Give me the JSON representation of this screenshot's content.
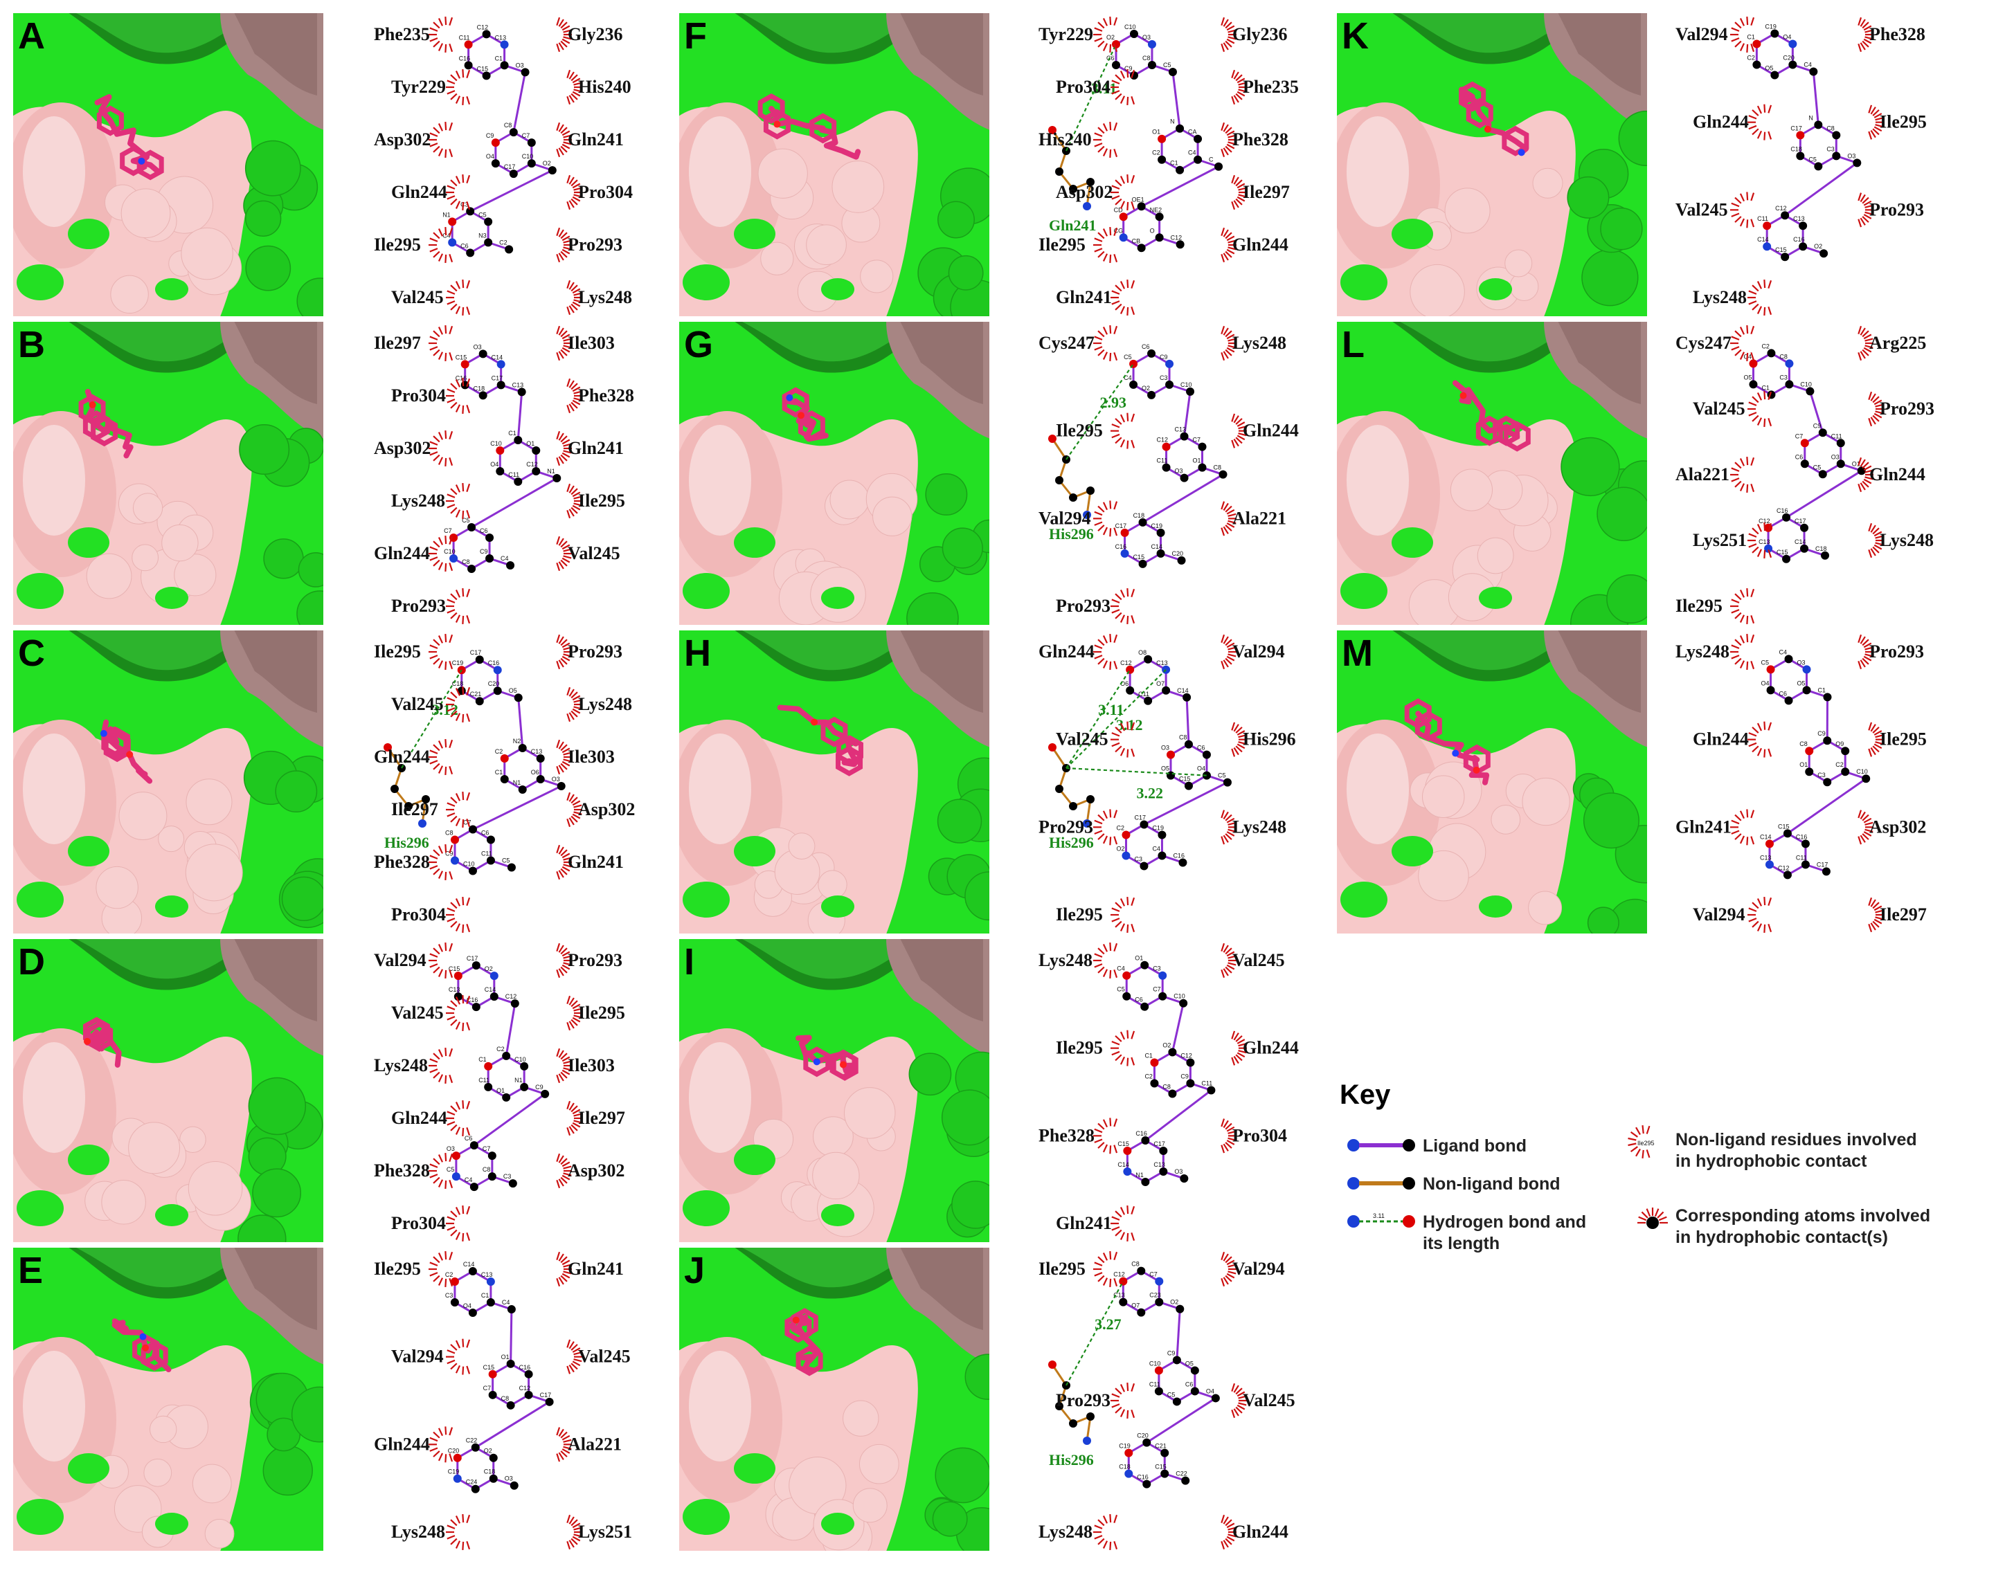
{
  "panels": [
    {
      "letter": "A",
      "residues": [
        "Phe235",
        "Gly236",
        "Tyr229",
        "His240",
        "Asp302",
        "Gln241",
        "Gln244",
        "Pro304",
        "Ile295",
        "Pro293",
        "Val245",
        "Lys248"
      ],
      "hbonds": [],
      "hres": [],
      "atoms": [
        "C1",
        "C15",
        "C16",
        "C11",
        "C12",
        "C13",
        "O3",
        "C10",
        "C17",
        "O4",
        "C9",
        "C8",
        "C7",
        "O2",
        "N3",
        "C6",
        "C4",
        "N1",
        "C3",
        "C5",
        "C2",
        "N2",
        "C1",
        "C19",
        "C21",
        "C23",
        "C18",
        "C20",
        "C22",
        "C24",
        "O1",
        "O5",
        "C25"
      ]
    },
    {
      "letter": "B",
      "residues": [
        "Ile297",
        "Ile303",
        "Pro304",
        "Phe328",
        "Asp302",
        "Gln241",
        "Lys248",
        "Ile295",
        "Gln244",
        "Val245",
        "Pro293"
      ],
      "hbonds": [],
      "hres": [],
      "atoms": [
        "C17",
        "C18",
        "C16",
        "C15",
        "O3",
        "C14",
        "C13",
        "C12",
        "C11",
        "O4",
        "C10",
        "C1",
        "O1",
        "N1",
        "C9",
        "C8",
        "C10",
        "C7",
        "C5",
        "C6",
        "C4",
        "C2",
        "C3",
        "N2",
        "N3",
        "O2"
      ]
    },
    {
      "letter": "C",
      "residues": [
        "Ile295",
        "Pro293",
        "Val245",
        "Lys248",
        "Gln244",
        "Ile303",
        "Ile297",
        "Asp302",
        "Phe328",
        "Gln241",
        "Pro304"
      ],
      "hbonds": [
        "3.12"
      ],
      "hres": [
        "His296"
      ],
      "atoms": [
        "C20",
        "C21",
        "C18",
        "C19",
        "C17",
        "C16",
        "O5",
        "O6",
        "N1",
        "C1",
        "C2",
        "N2",
        "C13",
        "O3",
        "C11",
        "C10",
        "C9",
        "C8",
        "C7",
        "C6",
        "C5",
        "O1",
        "O",
        "CD",
        "NE2",
        "CE1",
        "ND1",
        "CG",
        "CB",
        "CA",
        "N"
      ]
    },
    {
      "letter": "D",
      "residues": [
        "Val294",
        "Pro293",
        "Val245",
        "Ile295",
        "Lys248",
        "Ile303",
        "Gln244",
        "Ile297",
        "Phe328",
        "Asp302",
        "Pro304"
      ],
      "hbonds": [],
      "hres": [],
      "atoms": [
        "C14",
        "C16",
        "C13",
        "C15",
        "C17",
        "O2",
        "C12",
        "N1",
        "O1",
        "C11",
        "C1",
        "C2",
        "C10",
        "C9",
        "C8",
        "C4",
        "C5",
        "O3",
        "C6",
        "C7",
        "C3"
      ]
    },
    {
      "letter": "E",
      "residues": [
        "Ile295",
        "Gln241",
        "Val294",
        "Val245",
        "Gln244",
        "Ala221",
        "Lys248",
        "Lys251"
      ],
      "hbonds": [],
      "hres": [],
      "atoms": [
        "C1",
        "O4",
        "C3",
        "C2",
        "C14",
        "C13",
        "C4",
        "C12",
        "C8",
        "C7",
        "C15",
        "O1",
        "C16",
        "C17",
        "C18",
        "C24",
        "C19",
        "C20",
        "C22",
        "O2",
        "O3",
        "C23"
      ]
    },
    {
      "letter": "F",
      "residues": [
        "Tyr229",
        "Gly236",
        "Pro304",
        "Phe235",
        "His240",
        "Phe328",
        "Asp302",
        "Ile297",
        "Ile295",
        "Gln244",
        "Gln241"
      ],
      "hbonds": [
        "3.11"
      ],
      "hres": [
        "Gln241"
      ],
      "atoms": [
        "C8",
        "C9",
        "C6",
        "O2",
        "C10",
        "O3",
        "C5",
        "C4",
        "C1",
        "C2",
        "O1",
        "N",
        "CA",
        "C",
        "O",
        "CB",
        "CG",
        "CD",
        "OE1",
        "NE2",
        "C12",
        "C11",
        "C13",
        "C14",
        "C15",
        "C18",
        "C20",
        "C19",
        "C16",
        "C17"
      ]
    },
    {
      "letter": "G",
      "residues": [
        "Cys247",
        "Lys248",
        "Ile295",
        "Gln244",
        "Val294",
        "Ala221",
        "Pro293"
      ],
      "hbonds": [
        "2.93"
      ],
      "hres": [
        "His296"
      ],
      "atoms": [
        "C3",
        "O2",
        "C4",
        "C5",
        "C6",
        "C9",
        "C10",
        "O1",
        "O3",
        "C11",
        "C12",
        "C13",
        "C7",
        "C8",
        "C14",
        "C15",
        "C16",
        "C17",
        "C18",
        "C19",
        "C20",
        "C21",
        "C22",
        "O9",
        "O8",
        "O7",
        "NE2",
        "CE1",
        "ND1",
        "CD2",
        "CG",
        "CB",
        "CA",
        "N",
        "C",
        "O"
      ]
    },
    {
      "letter": "H",
      "residues": [
        "Gln244",
        "Val294",
        "Val245",
        "His296",
        "Pro293",
        "Lys248",
        "Ile295"
      ],
      "hbonds": [
        "3.11",
        "3.12",
        "3.22"
      ],
      "hres": [
        "His296"
      ],
      "atoms": [
        "O7",
        "C11",
        "O6",
        "C12",
        "O8",
        "C13",
        "C14",
        "O4",
        "C15",
        "O5",
        "O3",
        "C8",
        "C6",
        "C5",
        "C4",
        "C3",
        "O2",
        "C2",
        "C17",
        "C19",
        "C16",
        "C21",
        "C20",
        "O1",
        "O9",
        "NE2",
        "CE1",
        "CD2",
        "ND1",
        "CG",
        "CB",
        "CA",
        "C",
        "N"
      ]
    },
    {
      "letter": "I",
      "residues": [
        "Lys248",
        "Val245",
        "Ile295",
        "Gln244",
        "Phe328",
        "Pro304",
        "Gln241"
      ],
      "hbonds": [],
      "hres": [],
      "atoms": [
        "C7",
        "C6",
        "C5",
        "C4",
        "O1",
        "C3",
        "C10",
        "C9",
        "C8",
        "C2",
        "C1",
        "O2",
        "C12",
        "C11",
        "C13",
        "N1",
        "C14",
        "C15",
        "C16",
        "C17",
        "O3",
        "C18",
        "C20",
        "N2",
        "C19"
      ]
    },
    {
      "letter": "J",
      "residues": [
        "Ile295",
        "Val294",
        "Pro293",
        "Val245",
        "Lys248",
        "Gln244"
      ],
      "hbonds": [
        "3.27"
      ],
      "hres": [
        "His296"
      ],
      "atoms": [
        "C23",
        "O7",
        "C13",
        "C12",
        "C8",
        "C7",
        "O2",
        "C6",
        "C5",
        "C11",
        "C10",
        "C9",
        "O5",
        "O4",
        "C15",
        "C16",
        "C18",
        "C19",
        "C20",
        "C21",
        "C22",
        "O6",
        "N",
        "CA",
        "C",
        "O",
        "CB",
        "CG",
        "ND1",
        "CE1",
        "NE2",
        "CD2"
      ]
    },
    {
      "letter": "K",
      "residues": [
        "Val294",
        "Phe328",
        "Gln244",
        "Ile295",
        "Val245",
        "Pro293",
        "Lys248"
      ],
      "hbonds": [],
      "hres": [],
      "atoms": [
        "C20",
        "O5",
        "C2",
        "C1",
        "C19",
        "O4",
        "C4",
        "C3",
        "C5",
        "C18",
        "C17",
        "N",
        "C8",
        "O3",
        "C16",
        "C15",
        "C14",
        "C11",
        "C12",
        "C13",
        "O2",
        "O1"
      ]
    },
    {
      "letter": "L",
      "residues": [
        "Cys247",
        "Arg225",
        "Val245",
        "Pro293",
        "Ala221",
        "Gln244",
        "Lys251",
        "Lys248",
        "Ile295"
      ],
      "hbonds": [],
      "hres": [],
      "atoms": [
        "C3",
        "C1",
        "O5",
        "C4",
        "C2",
        "C8",
        "C10",
        "O3",
        "C5",
        "C6",
        "C7",
        "C9",
        "C11",
        "O1",
        "C14",
        "C15",
        "C13",
        "C12",
        "C16",
        "C17",
        "C18",
        "C19",
        "C21",
        "C23",
        "O4",
        "N",
        "C22",
        "C20",
        "O2"
      ]
    },
    {
      "letter": "M",
      "residues": [
        "Lys248",
        "Pro293",
        "Gln244",
        "Ile295",
        "Gln241",
        "Asp302",
        "Val294",
        "Ile297"
      ],
      "hbonds": [],
      "hres": [],
      "atoms": [
        "O5",
        "C6",
        "O4",
        "C5",
        "C4",
        "O3",
        "C1",
        "C2",
        "C3",
        "O1",
        "C8",
        "C9",
        "O9",
        "C10",
        "C11",
        "C12",
        "C13",
        "C14",
        "C15",
        "C16",
        "C17",
        "C18",
        "O10",
        "O6",
        "O7",
        "O8",
        "C20"
      ]
    }
  ],
  "key": {
    "title": "Key",
    "items": [
      {
        "label1": "Ligand bond",
        "label2": ""
      },
      {
        "label1": "Non-ligand bond",
        "label2": ""
      },
      {
        "label1": "Hydrogen bond and",
        "label2": "its length",
        "sample": "3.11"
      },
      {
        "label1": "Non-ligand residues involved",
        "label2": "in hydrophobic contact",
        "sample": "Ile295"
      },
      {
        "label1": "Corresponding atoms involved",
        "label2": "in hydrophobic contact(s)"
      }
    ]
  },
  "colors": {
    "pocket_green": "#23e023",
    "pocket_dark": "#1a8a1a",
    "pocket_pink": "#f7c9c9",
    "pocket_mauve": "#a78583",
    "ligand": "#e0307a",
    "ligand_bond": "#8b2fd1",
    "nonligand_bond": "#c07a1a",
    "hbond": "#1a8a1a",
    "residue_arc": "#cc1111",
    "oxygen": "#dd0000",
    "nitrogen": "#1a3fd6",
    "carbon": "#000000"
  }
}
